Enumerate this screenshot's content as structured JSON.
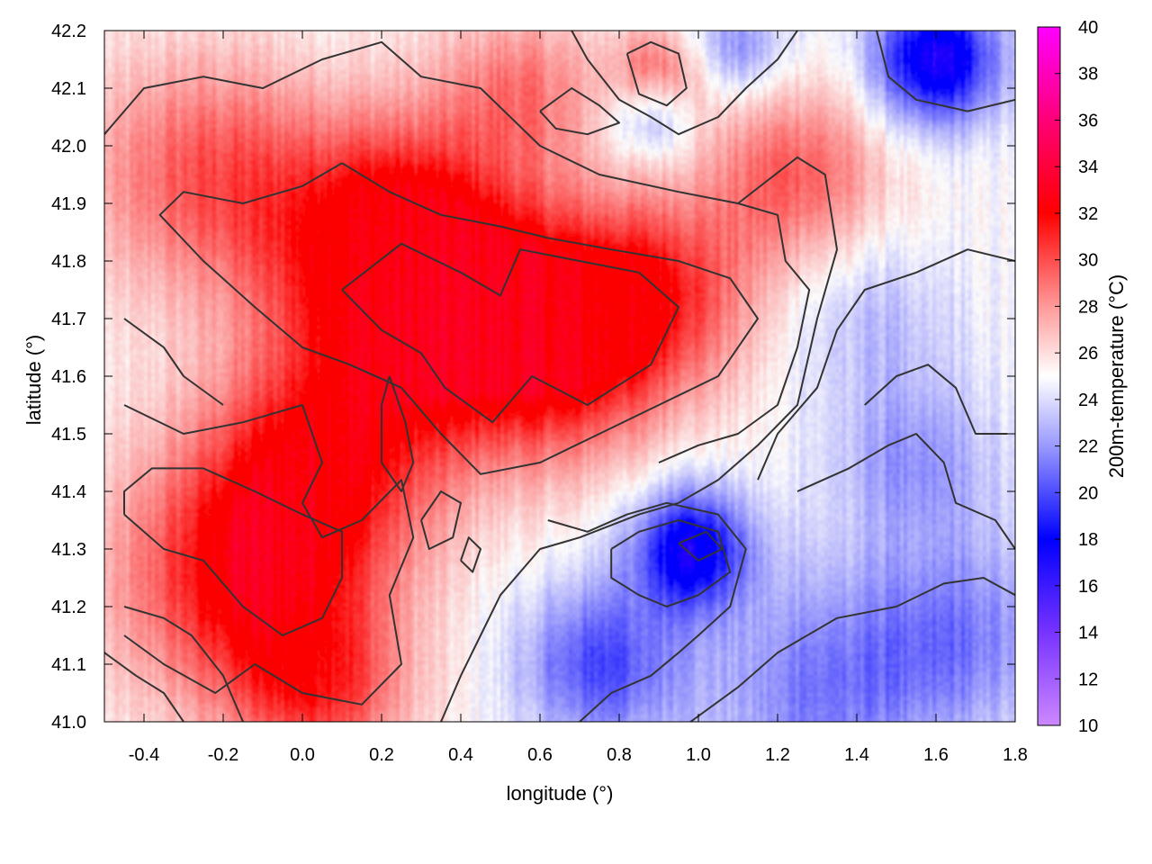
{
  "chart_data": {
    "type": "heatmap",
    "title": "",
    "xlabel": "longitude (°)",
    "ylabel": "latitude (°)",
    "xlim": [
      -0.5,
      1.8
    ],
    "ylim": [
      41.0,
      42.2
    ],
    "xticks": [
      -0.4,
      -0.2,
      0.0,
      0.2,
      0.4,
      0.6,
      0.8,
      1.0,
      1.2,
      1.4,
      1.6,
      1.8
    ],
    "xtick_labels": [
      "-0.4",
      "-0.2",
      "0.0",
      "0.2",
      "0.4",
      "0.6",
      "0.8",
      "1.0",
      "1.2",
      "1.4",
      "1.6",
      "1.8"
    ],
    "yticks": [
      41.0,
      41.1,
      41.2,
      41.3,
      41.4,
      41.5,
      41.6,
      41.7,
      41.8,
      41.9,
      42.0,
      42.1,
      42.2
    ],
    "ytick_labels": [
      "41.0",
      "41.1",
      "41.2",
      "41.3",
      "41.4",
      "41.5",
      "41.6",
      "41.7",
      "41.8",
      "41.9",
      "42.0",
      "42.1",
      "42.2"
    ],
    "colorbar": {
      "label": "200m-temperature (°C)",
      "range": [
        10,
        40
      ],
      "ticks": [
        10,
        12,
        14,
        16,
        18,
        20,
        22,
        24,
        26,
        28,
        30,
        32,
        34,
        36,
        38,
        40
      ],
      "tick_labels": [
        "10",
        "12",
        "14",
        "16",
        "18",
        "20",
        "22",
        "24",
        "26",
        "28",
        "30",
        "32",
        "34",
        "36",
        "38",
        "40"
      ],
      "colormap": [
        {
          "value": 10,
          "color": "#cc88ff"
        },
        {
          "value": 14,
          "color": "#7733ff"
        },
        {
          "value": 18,
          "color": "#0000ff"
        },
        {
          "value": 22,
          "color": "#9999ff"
        },
        {
          "value": 25,
          "color": "#ffffff"
        },
        {
          "value": 28,
          "color": "#ff9999"
        },
        {
          "value": 32,
          "color": "#ff0000"
        },
        {
          "value": 36,
          "color": "#ff0077"
        },
        {
          "value": 40,
          "color": "#ff00ff"
        }
      ]
    },
    "hotspots": [
      {
        "lon": 0.35,
        "lat": 41.72,
        "temp": 31.5,
        "radius": 0.32
      },
      {
        "lon": 0.65,
        "lat": 41.65,
        "temp": 31,
        "radius": 0.28
      },
      {
        "lon": -0.15,
        "lat": 41.25,
        "temp": 31.5,
        "radius": 0.32
      },
      {
        "lon": 0.05,
        "lat": 41.45,
        "temp": 30.5,
        "radius": 0.3
      },
      {
        "lon": 0.2,
        "lat": 41.85,
        "temp": 30.5,
        "radius": 0.3
      },
      {
        "lon": -0.25,
        "lat": 41.95,
        "temp": 29.5,
        "radius": 0.3
      },
      {
        "lon": 0.9,
        "lat": 41.75,
        "temp": 30,
        "radius": 0.25
      },
      {
        "lon": 1.25,
        "lat": 41.95,
        "temp": 29.5,
        "radius": 0.22
      },
      {
        "lon": 0.05,
        "lat": 41.05,
        "temp": 29.5,
        "radius": 0.22
      },
      {
        "lon": 0.9,
        "lat": 42.12,
        "temp": 29.5,
        "radius": 0.12
      },
      {
        "lon": 0.55,
        "lat": 42.1,
        "temp": 28.5,
        "radius": 0.2
      }
    ],
    "coldspots": [
      {
        "lon": 0.98,
        "lat": 41.3,
        "temp": 17.5,
        "radius": 0.15
      },
      {
        "lon": 1.6,
        "lat": 42.15,
        "temp": 16.5,
        "radius": 0.16
      },
      {
        "lon": 0.75,
        "lat": 41.1,
        "temp": 20,
        "radius": 0.2
      },
      {
        "lon": 1.3,
        "lat": 41.05,
        "temp": 21.5,
        "radius": 0.3
      },
      {
        "lon": 1.65,
        "lat": 41.15,
        "temp": 21.5,
        "radius": 0.25
      },
      {
        "lon": 1.55,
        "lat": 41.45,
        "temp": 22,
        "radius": 0.2
      },
      {
        "lon": 1.45,
        "lat": 41.7,
        "temp": 23,
        "radius": 0.22
      },
      {
        "lon": 0.88,
        "lat": 42.05,
        "temp": 21,
        "radius": 0.1
      },
      {
        "lon": 1.1,
        "lat": 42.17,
        "temp": 21.5,
        "radius": 0.12
      }
    ],
    "contour_levels": [
      24,
      28,
      30
    ],
    "contours": [
      {
        "level": 30,
        "points": [
          [
            0.1,
            41.97
          ],
          [
            0.22,
            41.92
          ],
          [
            0.35,
            41.88
          ],
          [
            0.5,
            41.86
          ],
          [
            0.62,
            41.84
          ],
          [
            0.78,
            41.82
          ],
          [
            0.95,
            41.8
          ],
          [
            1.08,
            41.77
          ],
          [
            1.15,
            41.7
          ],
          [
            1.05,
            41.6
          ],
          [
            0.9,
            41.55
          ],
          [
            0.75,
            41.5
          ],
          [
            0.6,
            41.45
          ],
          [
            0.45,
            41.43
          ],
          [
            0.35,
            41.5
          ],
          [
            0.25,
            41.58
          ],
          [
            0.12,
            41.62
          ],
          [
            0.0,
            41.65
          ],
          [
            -0.12,
            41.72
          ],
          [
            -0.25,
            41.8
          ],
          [
            -0.36,
            41.88
          ],
          [
            -0.3,
            41.92
          ],
          [
            -0.15,
            41.9
          ],
          [
            0.0,
            41.93
          ],
          [
            0.1,
            41.97
          ]
        ]
      },
      {
        "level": 31,
        "points": [
          [
            0.1,
            41.75
          ],
          [
            0.25,
            41.83
          ],
          [
            0.4,
            41.78
          ],
          [
            0.5,
            41.74
          ],
          [
            0.55,
            41.82
          ],
          [
            0.7,
            41.8
          ],
          [
            0.85,
            41.78
          ],
          [
            0.95,
            41.72
          ],
          [
            0.88,
            41.62
          ],
          [
            0.72,
            41.55
          ],
          [
            0.58,
            41.6
          ],
          [
            0.48,
            41.52
          ],
          [
            0.36,
            41.58
          ],
          [
            0.3,
            41.64
          ],
          [
            0.2,
            41.68
          ],
          [
            0.1,
            41.75
          ]
        ]
      },
      {
        "level": 30,
        "points": [
          [
            -0.45,
            41.36
          ],
          [
            -0.35,
            41.3
          ],
          [
            -0.25,
            41.28
          ],
          [
            -0.15,
            41.2
          ],
          [
            -0.05,
            41.15
          ],
          [
            0.05,
            41.18
          ],
          [
            0.1,
            41.25
          ],
          [
            0.1,
            41.33
          ],
          [
            0.0,
            41.36
          ],
          [
            -0.12,
            41.4
          ],
          [
            -0.25,
            41.44
          ],
          [
            -0.38,
            41.44
          ],
          [
            -0.45,
            41.4
          ],
          [
            -0.45,
            41.36
          ]
        ]
      },
      {
        "level": 28,
        "points": [
          [
            -0.45,
            41.55
          ],
          [
            -0.3,
            41.5
          ],
          [
            -0.15,
            41.52
          ],
          [
            0.0,
            41.55
          ],
          [
            0.05,
            41.45
          ],
          [
            0.0,
            41.38
          ],
          [
            0.05,
            41.32
          ],
          [
            0.15,
            41.35
          ],
          [
            0.25,
            41.42
          ],
          [
            0.28,
            41.32
          ],
          [
            0.22,
            41.22
          ],
          [
            0.25,
            41.1
          ],
          [
            0.15,
            41.03
          ],
          [
            0.0,
            41.05
          ],
          [
            -0.12,
            41.1
          ],
          [
            -0.22,
            41.05
          ],
          [
            -0.35,
            41.1
          ],
          [
            -0.45,
            41.15
          ]
        ]
      },
      {
        "level": 28,
        "points": [
          [
            -0.5,
            42.02
          ],
          [
            -0.4,
            42.1
          ],
          [
            -0.25,
            42.12
          ],
          [
            -0.1,
            42.1
          ],
          [
            0.05,
            42.15
          ],
          [
            0.2,
            42.18
          ],
          [
            0.3,
            42.12
          ],
          [
            0.45,
            42.1
          ],
          [
            0.6,
            42.0
          ],
          [
            0.75,
            41.95
          ],
          [
            0.95,
            41.92
          ],
          [
            1.1,
            41.9
          ],
          [
            1.25,
            41.98
          ],
          [
            1.32,
            41.95
          ],
          [
            1.35,
            41.82
          ],
          [
            1.3,
            41.7
          ],
          [
            1.25,
            41.55
          ],
          [
            1.15,
            41.48
          ],
          [
            1.05,
            41.42
          ],
          [
            0.95,
            41.38
          ],
          [
            0.85,
            41.36
          ],
          [
            0.7,
            41.32
          ],
          [
            0.6,
            41.3
          ],
          [
            0.5,
            41.22
          ],
          [
            0.45,
            41.15
          ],
          [
            0.4,
            41.08
          ],
          [
            0.35,
            41.0
          ]
        ]
      },
      {
        "level": 24,
        "points": [
          [
            0.62,
            41.35
          ],
          [
            0.72,
            41.33
          ],
          [
            0.82,
            41.36
          ],
          [
            0.92,
            41.38
          ],
          [
            1.05,
            41.36
          ],
          [
            1.12,
            41.3
          ],
          [
            1.08,
            41.2
          ],
          [
            1.0,
            41.15
          ],
          [
            0.95,
            41.12
          ],
          [
            0.88,
            41.08
          ],
          [
            0.78,
            41.05
          ],
          [
            0.7,
            41.0
          ]
        ]
      },
      {
        "level": 22,
        "points": [
          [
            0.78,
            41.3
          ],
          [
            0.85,
            41.33
          ],
          [
            0.95,
            41.35
          ],
          [
            1.05,
            41.33
          ],
          [
            1.08,
            41.26
          ],
          [
            1.0,
            41.22
          ],
          [
            0.92,
            41.2
          ],
          [
            0.85,
            41.22
          ],
          [
            0.78,
            41.25
          ],
          [
            0.78,
            41.3
          ]
        ]
      },
      {
        "level": 20,
        "points": [
          [
            0.95,
            41.31
          ],
          [
            1.02,
            41.33
          ],
          [
            1.06,
            41.3
          ],
          [
            1.0,
            41.28
          ],
          [
            0.95,
            41.31
          ]
        ]
      },
      {
        "level": 24,
        "points": [
          [
            0.98,
            41.0
          ],
          [
            1.1,
            41.06
          ],
          [
            1.2,
            41.12
          ],
          [
            1.35,
            41.18
          ],
          [
            1.5,
            41.2
          ],
          [
            1.62,
            41.24
          ],
          [
            1.72,
            41.25
          ],
          [
            1.8,
            41.22
          ]
        ]
      },
      {
        "level": 24,
        "points": [
          [
            1.25,
            41.4
          ],
          [
            1.38,
            41.44
          ],
          [
            1.48,
            41.48
          ],
          [
            1.55,
            41.5
          ],
          [
            1.62,
            41.45
          ],
          [
            1.65,
            41.38
          ],
          [
            1.75,
            41.35
          ],
          [
            1.8,
            41.3
          ]
        ]
      },
      {
        "level": 24,
        "points": [
          [
            1.15,
            41.42
          ],
          [
            1.2,
            41.5
          ],
          [
            1.3,
            41.58
          ],
          [
            1.35,
            41.68
          ],
          [
            1.42,
            41.75
          ],
          [
            1.55,
            41.78
          ],
          [
            1.68,
            41.82
          ],
          [
            1.8,
            41.8
          ]
        ]
      },
      {
        "level": 24,
        "points": [
          [
            1.42,
            41.55
          ],
          [
            1.5,
            41.6
          ],
          [
            1.58,
            41.62
          ],
          [
            1.65,
            41.58
          ],
          [
            1.7,
            41.5
          ],
          [
            1.78,
            41.5
          ]
        ]
      },
      {
        "level": 24,
        "points": [
          [
            1.45,
            42.2
          ],
          [
            1.48,
            42.12
          ],
          [
            1.55,
            42.08
          ],
          [
            1.68,
            42.06
          ],
          [
            1.8,
            42.08
          ]
        ]
      },
      {
        "level": 24,
        "points": [
          [
            0.68,
            42.2
          ],
          [
            0.72,
            42.15
          ],
          [
            0.8,
            42.08
          ],
          [
            0.88,
            42.05
          ],
          [
            0.95,
            42.02
          ],
          [
            1.05,
            42.05
          ],
          [
            1.12,
            42.1
          ],
          [
            1.2,
            42.15
          ],
          [
            1.25,
            42.2
          ]
        ]
      },
      {
        "level": 24,
        "points": [
          [
            0.6,
            42.06
          ],
          [
            0.68,
            42.1
          ],
          [
            0.75,
            42.07
          ],
          [
            0.8,
            42.04
          ],
          [
            0.72,
            42.02
          ],
          [
            0.64,
            42.03
          ],
          [
            0.6,
            42.06
          ]
        ]
      },
      {
        "level": 28,
        "points": [
          [
            0.82,
            42.16
          ],
          [
            0.88,
            42.18
          ],
          [
            0.95,
            42.16
          ],
          [
            0.97,
            42.1
          ],
          [
            0.92,
            42.07
          ],
          [
            0.85,
            42.09
          ],
          [
            0.82,
            42.16
          ]
        ]
      },
      {
        "level": 26,
        "points": [
          [
            1.1,
            41.9
          ],
          [
            1.2,
            41.88
          ],
          [
            1.22,
            41.8
          ],
          [
            1.28,
            41.75
          ],
          [
            1.25,
            41.65
          ],
          [
            1.2,
            41.55
          ],
          [
            1.1,
            41.5
          ],
          [
            1.0,
            41.48
          ],
          [
            0.9,
            41.45
          ]
        ]
      },
      {
        "level": 28,
        "points": [
          [
            0.22,
            41.6
          ],
          [
            0.26,
            41.52
          ],
          [
            0.28,
            41.45
          ],
          [
            0.25,
            41.4
          ],
          [
            0.2,
            41.45
          ],
          [
            0.2,
            41.55
          ],
          [
            0.22,
            41.6
          ]
        ]
      },
      {
        "level": 28,
        "points": [
          [
            0.3,
            41.35
          ],
          [
            0.35,
            41.4
          ],
          [
            0.4,
            41.38
          ],
          [
            0.38,
            41.32
          ],
          [
            0.32,
            41.3
          ],
          [
            0.3,
            41.35
          ]
        ]
      },
      {
        "level": 28,
        "points": [
          [
            0.4,
            41.28
          ],
          [
            0.42,
            41.32
          ],
          [
            0.45,
            41.3
          ],
          [
            0.43,
            41.26
          ],
          [
            0.4,
            41.28
          ]
        ]
      },
      {
        "level": 26,
        "points": [
          [
            -0.45,
            41.7
          ],
          [
            -0.35,
            41.65
          ],
          [
            -0.3,
            41.6
          ],
          [
            -0.2,
            41.55
          ]
        ]
      },
      {
        "level": 26,
        "points": [
          [
            -0.45,
            41.2
          ],
          [
            -0.35,
            41.18
          ],
          [
            -0.28,
            41.15
          ],
          [
            -0.2,
            41.08
          ],
          [
            -0.15,
            41.0
          ]
        ]
      },
      {
        "level": 26,
        "points": [
          [
            -0.5,
            41.12
          ],
          [
            -0.42,
            41.08
          ],
          [
            -0.35,
            41.05
          ],
          [
            -0.3,
            41.0
          ]
        ]
      }
    ]
  }
}
